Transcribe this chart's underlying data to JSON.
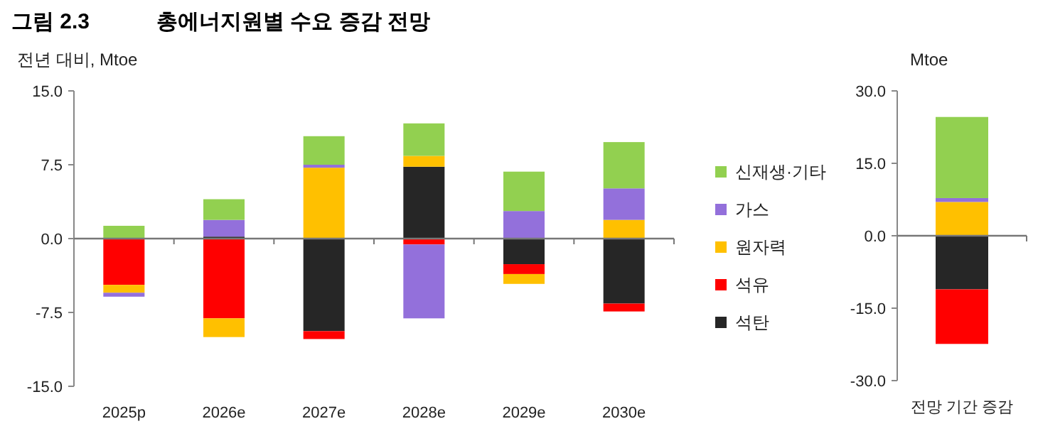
{
  "chart_data": [
    {
      "type": "bar",
      "stacked": true,
      "ylabel": "전년 대비, Mtoe",
      "annotations": [
        "그림 2.3",
        "총에너지원별 수요 증감 전망"
      ],
      "categories": [
        "2025p",
        "2026e",
        "2027e",
        "2028e",
        "2029e",
        "2030e"
      ],
      "ylim": [
        -15,
        15
      ],
      "yticks": [
        {
          "value": 15,
          "label": "15.0"
        },
        {
          "value": 7.5,
          "label": "7.5"
        },
        {
          "value": 0,
          "label": "0.0"
        },
        {
          "value": -7.5,
          "label": "-7.5"
        },
        {
          "value": -15,
          "label": "-15.0"
        }
      ],
      "legend": "right",
      "series": [
        {
          "name": "석탄",
          "color": "#262626",
          "values": [
            0,
            0.2,
            -9.4,
            7.3,
            -2.6,
            -6.6
          ]
        },
        {
          "name": "석유",
          "color": "#ff0000",
          "values": [
            -4.7,
            -8.1,
            -0.8,
            -0.6,
            -1.0,
            -0.8
          ]
        },
        {
          "name": "원자력",
          "color": "#ffc000",
          "values": [
            -0.8,
            -1.9,
            7.2,
            1.1,
            -1.0,
            1.9
          ]
        },
        {
          "name": "가스",
          "color": "#9370db",
          "values": [
            -0.4,
            1.7,
            0.3,
            -7.5,
            2.8,
            3.2
          ]
        },
        {
          "name": "신재생·기타",
          "color": "#92d050",
          "values": [
            1.3,
            2.1,
            2.9,
            3.3,
            4.0,
            4.7
          ]
        }
      ]
    },
    {
      "type": "bar",
      "stacked": true,
      "ylabel": "Mtoe",
      "categories": [
        "전망 기간 증감"
      ],
      "ylim": [
        -30,
        30
      ],
      "yticks": [
        {
          "value": 30,
          "label": "30.0"
        },
        {
          "value": 15,
          "label": "15.0"
        },
        {
          "value": 0,
          "label": "0.0"
        },
        {
          "value": -15,
          "label": "-15.0"
        },
        {
          "value": -30,
          "label": "-30.0"
        }
      ],
      "series": [
        {
          "color": "#262626",
          "values": [
            -11.1
          ]
        },
        {
          "color": "#ff0000",
          "values": [
            -11.3
          ]
        },
        {
          "color": "#ffc000",
          "values": [
            7.0
          ]
        },
        {
          "color": "#9370db",
          "values": [
            0.8
          ]
        },
        {
          "color": "#92d050",
          "values": [
            16.8
          ]
        }
      ]
    }
  ]
}
